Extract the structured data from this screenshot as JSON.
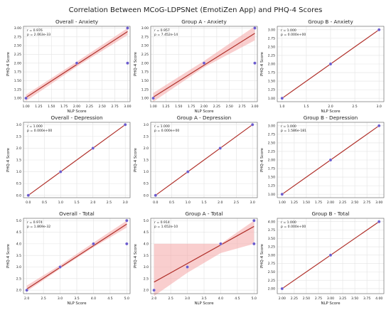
{
  "suptitle": "Correlation Between MCoG-LDPSNet (EmotiZen App) and PHQ-4 Scores",
  "chart_data": [
    {
      "type": "scatter",
      "title": "Overall - Anxiety",
      "xlabel": "NLP Score",
      "ylabel": "PHQ-4 Score",
      "stats": [
        "r = 0.976",
        "p = 2.063e-33"
      ],
      "xlim": [
        0.95,
        3.05
      ],
      "ylim": [
        0.9,
        3.05
      ],
      "xticks": [
        "1.00",
        "1.25",
        "1.50",
        "1.75",
        "2.00",
        "2.25",
        "2.50",
        "2.75",
        "3.00"
      ],
      "xtickvals": [
        1,
        1.25,
        1.5,
        1.75,
        2,
        2.25,
        2.5,
        2.75,
        3
      ],
      "yticks": [
        "1.00",
        "1.25",
        "1.50",
        "1.75",
        "2.00",
        "2.25",
        "2.50",
        "2.75",
        "3.00"
      ],
      "ytickvals": [
        1,
        1.25,
        1.5,
        1.75,
        2,
        2.25,
        2.5,
        2.75,
        3
      ],
      "points": [
        [
          1,
          1
        ],
        [
          2,
          2
        ],
        [
          3,
          3
        ],
        [
          3,
          2
        ]
      ],
      "fit": [
        [
          1,
          1.02
        ],
        [
          3,
          2.9
        ]
      ],
      "band": [
        [
          1,
          0.92,
          1.1
        ],
        [
          2,
          1.9,
          2.04
        ],
        [
          3,
          2.8,
          3.0
        ]
      ],
      "legend": []
    },
    {
      "type": "scatter",
      "title": "Group A - Anxiety",
      "xlabel": "NLP Score",
      "ylabel": "PHQ-4 Score",
      "stats": [
        "r = 0.957",
        "p = 7.452e-14"
      ],
      "xlim": [
        0.95,
        3.05
      ],
      "ylim": [
        0.9,
        3.05
      ],
      "xticks": [
        "1.00",
        "1.25",
        "1.50",
        "1.75",
        "2.00",
        "2.25",
        "2.50",
        "2.75",
        "3.00"
      ],
      "xtickvals": [
        1,
        1.25,
        1.5,
        1.75,
        2,
        2.25,
        2.5,
        2.75,
        3
      ],
      "yticks": [
        "1.00",
        "1.25",
        "1.50",
        "1.75",
        "2.00",
        "2.25",
        "2.50",
        "2.75",
        "3.00"
      ],
      "ytickvals": [
        1,
        1.25,
        1.5,
        1.75,
        2,
        2.25,
        2.5,
        2.75,
        3
      ],
      "points": [
        [
          1,
          1
        ],
        [
          2,
          2
        ],
        [
          3,
          3
        ],
        [
          3,
          2
        ]
      ],
      "fit": [
        [
          1,
          1.03
        ],
        [
          3,
          2.85
        ]
      ],
      "band": [
        [
          1,
          0.9,
          1.15
        ],
        [
          2,
          1.88,
          2.06
        ],
        [
          3,
          2.65,
          3.05
        ]
      ],
      "legend": []
    },
    {
      "type": "scatter",
      "title": "Group B - Anxiety",
      "xlabel": "NLP Score",
      "ylabel": "PHQ-4 Score",
      "stats": [
        "r = 1.000",
        "p = 0.000e+00"
      ],
      "xlim": [
        0.9,
        3.1
      ],
      "ylim": [
        0.9,
        3.1
      ],
      "xticks": [
        "1.0",
        "1.5",
        "2.0",
        "2.5",
        "3.0"
      ],
      "xtickvals": [
        1,
        1.5,
        2,
        2.5,
        3
      ],
      "yticks": [
        "1.00",
        "1.25",
        "1.50",
        "1.75",
        "2.00",
        "2.25",
        "2.50",
        "2.75",
        "3.00"
      ],
      "ytickvals": [
        1,
        1.25,
        1.5,
        1.75,
        2,
        2.25,
        2.5,
        2.75,
        3
      ],
      "points": [
        [
          1,
          1
        ],
        [
          2,
          2
        ],
        [
          3,
          3
        ]
      ],
      "fit": [
        [
          1,
          1
        ],
        [
          3,
          3
        ]
      ],
      "band": [],
      "legend": []
    },
    {
      "type": "scatter",
      "title": "Overall - Depression",
      "xlabel": "",
      "ylabel": "PHQ-4 Score",
      "stats": [
        "r = 1.000",
        "p = 0.000e+00"
      ],
      "xlim": [
        -0.15,
        3.15
      ],
      "ylim": [
        -0.1,
        3.1
      ],
      "xticks": [
        "0.0",
        "0.5",
        "1.0",
        "1.5",
        "2.0",
        "2.5",
        "3.0"
      ],
      "xtickvals": [
        0,
        0.5,
        1,
        1.5,
        2,
        2.5,
        3
      ],
      "yticks": [
        "0.0",
        "0.5",
        "1.0",
        "1.5",
        "2.0",
        "2.5",
        "3.0"
      ],
      "ytickvals": [
        0,
        0.5,
        1,
        1.5,
        2,
        2.5,
        3
      ],
      "points": [
        [
          0,
          0
        ],
        [
          1,
          1
        ],
        [
          2,
          2
        ],
        [
          3,
          3
        ]
      ],
      "fit": [
        [
          0,
          0
        ],
        [
          3,
          3
        ]
      ],
      "band": [],
      "legend": []
    },
    {
      "type": "scatter",
      "title": "Group A - Depression",
      "xlabel": "",
      "ylabel": "PHQ-4 Score",
      "stats": [
        "r = 1.000",
        "p = 0.000e+00"
      ],
      "xlim": [
        -0.15,
        3.15
      ],
      "ylim": [
        -0.1,
        3.1
      ],
      "xticks": [
        "0.0",
        "0.5",
        "1.0",
        "1.5",
        "2.0",
        "2.5",
        "3.0"
      ],
      "xtickvals": [
        0,
        0.5,
        1,
        1.5,
        2,
        2.5,
        3
      ],
      "yticks": [
        "0.0",
        "0.5",
        "1.0",
        "1.5",
        "2.0",
        "2.5",
        "3.0"
      ],
      "ytickvals": [
        0,
        0.5,
        1,
        1.5,
        2,
        2.5,
        3
      ],
      "points": [
        [
          0,
          0
        ],
        [
          1,
          1
        ],
        [
          2,
          2
        ],
        [
          3,
          3
        ]
      ],
      "fit": [
        [
          0,
          0
        ],
        [
          3,
          3
        ]
      ],
      "band": [],
      "legend": []
    },
    {
      "type": "scatter",
      "title": "Group B - Depression",
      "xlabel": "",
      "ylabel": "PHQ-4 Score",
      "stats": [
        "r = 1.000",
        "p = 1.586e-181"
      ],
      "xlim": [
        0.9,
        3.1
      ],
      "ylim": [
        0.9,
        3.1
      ],
      "xticks": [
        "1.00",
        "1.25",
        "1.50",
        "1.75",
        "2.00",
        "2.25",
        "2.50",
        "2.75",
        "3.00"
      ],
      "xtickvals": [
        1,
        1.25,
        1.5,
        1.75,
        2,
        2.25,
        2.5,
        2.75,
        3
      ],
      "yticks": [
        "1.00",
        "1.25",
        "1.50",
        "1.75",
        "2.00",
        "2.25",
        "2.50",
        "2.75",
        "3.00"
      ],
      "ytickvals": [
        1,
        1.25,
        1.5,
        1.75,
        2,
        2.25,
        2.5,
        2.75,
        3
      ],
      "points": [
        [
          1,
          1
        ],
        [
          2,
          2
        ],
        [
          3,
          3
        ]
      ],
      "fit": [
        [
          1,
          1
        ],
        [
          3,
          3
        ]
      ],
      "band": [],
      "legend": []
    },
    {
      "type": "scatter",
      "title": "Overall - Total",
      "xlabel": "NLP Score",
      "ylabel": "PHQ-4 Score",
      "stats": [
        "r = 0.974",
        "p = 1.869e-32"
      ],
      "xlim": [
        1.9,
        5.1
      ],
      "ylim": [
        1.85,
        5.1
      ],
      "xticks": [
        "2.0",
        "2.5",
        "3.0",
        "3.5",
        "4.0",
        "4.5",
        "5.0"
      ],
      "xtickvals": [
        2,
        2.5,
        3,
        3.5,
        4,
        4.5,
        5
      ],
      "yticks": [
        "2.0",
        "2.5",
        "3.0",
        "3.5",
        "4.0",
        "4.5",
        "5.0"
      ],
      "ytickvals": [
        2,
        2.5,
        3,
        3.5,
        4,
        4.5,
        5
      ],
      "points": [
        [
          2,
          2
        ],
        [
          3,
          3
        ],
        [
          4,
          4
        ],
        [
          5,
          5
        ],
        [
          5,
          4
        ]
      ],
      "fit": [
        [
          2,
          2.05
        ],
        [
          5,
          4.85
        ]
      ],
      "band": [
        [
          2,
          1.95,
          2.2
        ],
        [
          3,
          2.92,
          3.08
        ],
        [
          4,
          3.85,
          4.05
        ],
        [
          5,
          4.7,
          5.0
        ]
      ],
      "legend": []
    },
    {
      "type": "scatter",
      "title": "Group A - Total",
      "xlabel": "NLP Score",
      "ylabel": "PHQ-4 Score",
      "stats": [
        "r = 0.914",
        "p = 1.652e-10"
      ],
      "xlim": [
        1.9,
        5.1
      ],
      "ylim": [
        1.85,
        5.1
      ],
      "xticks": [
        "2.0",
        "2.5",
        "3.0",
        "3.5",
        "4.0",
        "4.5",
        "5.0"
      ],
      "xtickvals": [
        2,
        2.5,
        3,
        3.5,
        4,
        4.5,
        5
      ],
      "yticks": [
        "2.0",
        "2.5",
        "3.0",
        "3.5",
        "4.0",
        "4.5",
        "5.0"
      ],
      "ytickvals": [
        2,
        2.5,
        3,
        3.5,
        4,
        4.5,
        5
      ],
      "points": [
        [
          2,
          2
        ],
        [
          3,
          3
        ],
        [
          4,
          4
        ],
        [
          5,
          5
        ],
        [
          5,
          4
        ]
      ],
      "fit": [
        [
          2,
          2.35
        ],
        [
          5,
          4.75
        ]
      ],
      "band": [
        [
          2,
          1.75,
          4.0
        ],
        [
          3,
          2.75,
          4.0
        ],
        [
          4,
          3.6,
          4.0
        ],
        [
          5,
          4.0,
          5.0
        ]
      ],
      "legend": []
    },
    {
      "type": "scatter",
      "title": "Group B - Total",
      "xlabel": "NLP Score",
      "ylabel": "PHQ-4 Score",
      "stats": [
        "r = 1.000",
        "p = 0.000e+00"
      ],
      "xlim": [
        1.9,
        4.1
      ],
      "ylim": [
        1.85,
        4.1
      ],
      "xticks": [
        "2.00",
        "2.25",
        "2.50",
        "2.75",
        "3.00",
        "3.25",
        "3.50",
        "3.75",
        "4.00"
      ],
      "xtickvals": [
        2,
        2.25,
        2.5,
        2.75,
        3,
        3.25,
        3.5,
        3.75,
        4
      ],
      "yticks": [
        "2.00",
        "2.25",
        "2.50",
        "2.75",
        "3.00",
        "3.25",
        "3.50",
        "3.75",
        "4.00"
      ],
      "ytickvals": [
        2,
        2.25,
        2.5,
        2.75,
        3,
        3.25,
        3.5,
        3.75,
        4
      ],
      "points": [
        [
          2,
          2
        ],
        [
          3,
          3
        ],
        [
          4,
          4
        ]
      ],
      "fit": [
        [
          2,
          2
        ],
        [
          4,
          4
        ]
      ],
      "band": [],
      "legend": []
    }
  ],
  "colors": {
    "point": "#6a5acd",
    "fit": "#b0302a",
    "band": "#f4a6a6",
    "grid": "#e3e3e3",
    "frame": "#555555",
    "text": "#222222"
  }
}
